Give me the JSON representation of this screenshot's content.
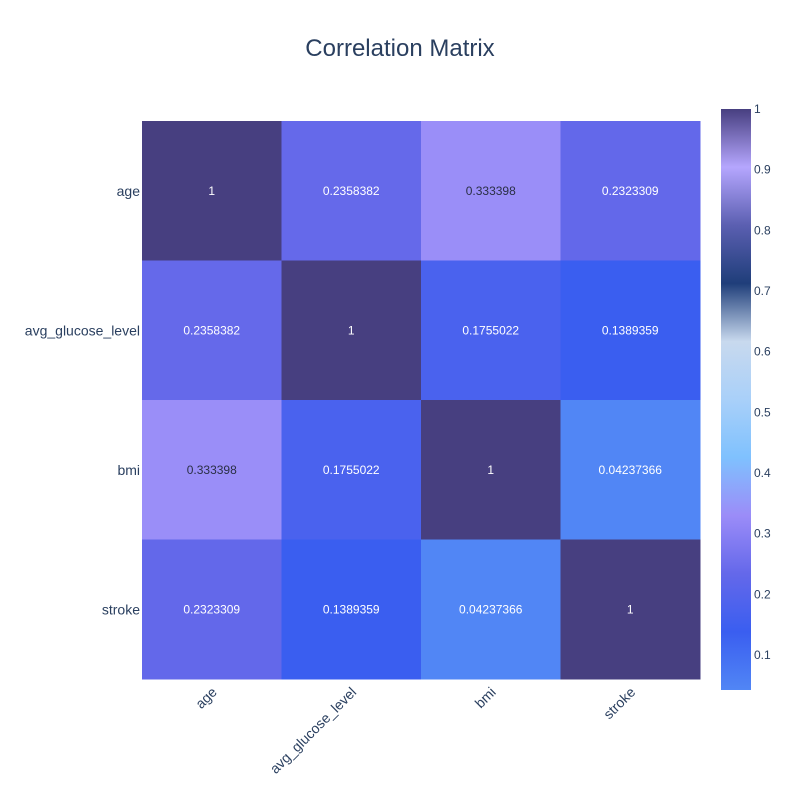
{
  "chart_data": {
    "type": "heatmap",
    "title": "Correlation Matrix",
    "x_categories": [
      "age",
      "avg_glucose_level",
      "bmi",
      "stroke"
    ],
    "y_categories": [
      "age",
      "avg_glucose_level",
      "bmi",
      "stroke"
    ],
    "z": [
      [
        1,
        0.2358382,
        0.333398,
        0.2323309
      ],
      [
        0.2358382,
        1,
        0.1755022,
        0.1389359
      ],
      [
        0.333398,
        0.1755022,
        1,
        0.04237366
      ],
      [
        0.2323309,
        0.1389359,
        0.04237366,
        1
      ]
    ],
    "cell_labels": [
      [
        "1",
        "0.2358382",
        "0.333398",
        "0.2323309"
      ],
      [
        "0.2358382",
        "1",
        "0.1755022",
        "0.1389359"
      ],
      [
        "0.333398",
        "0.1755022",
        "1",
        "0.04237366"
      ],
      [
        "0.2323309",
        "0.1389359",
        "0.04237366",
        "1"
      ]
    ],
    "colorbar": {
      "range": [
        0.04237366,
        1
      ],
      "ticks": [
        0.1,
        0.2,
        0.3,
        0.4,
        0.5,
        0.6,
        0.7,
        0.8,
        0.9,
        1
      ],
      "tick_labels": [
        "0.1",
        "0.2",
        "0.3",
        "0.4",
        "0.5",
        "0.6",
        "0.7",
        "0.8",
        "0.9",
        "1"
      ],
      "colorscale": [
        "#5186f5",
        "#3a5ef0",
        "#6468ea",
        "#9b8cf8",
        "#7fc1fe",
        "#a9d0f9",
        "#c8d9ee",
        "#1f3e7a",
        "#5b5fb1",
        "#b5a6fe",
        "#473f80"
      ]
    },
    "grid": false,
    "legend": "colorbar-right"
  }
}
